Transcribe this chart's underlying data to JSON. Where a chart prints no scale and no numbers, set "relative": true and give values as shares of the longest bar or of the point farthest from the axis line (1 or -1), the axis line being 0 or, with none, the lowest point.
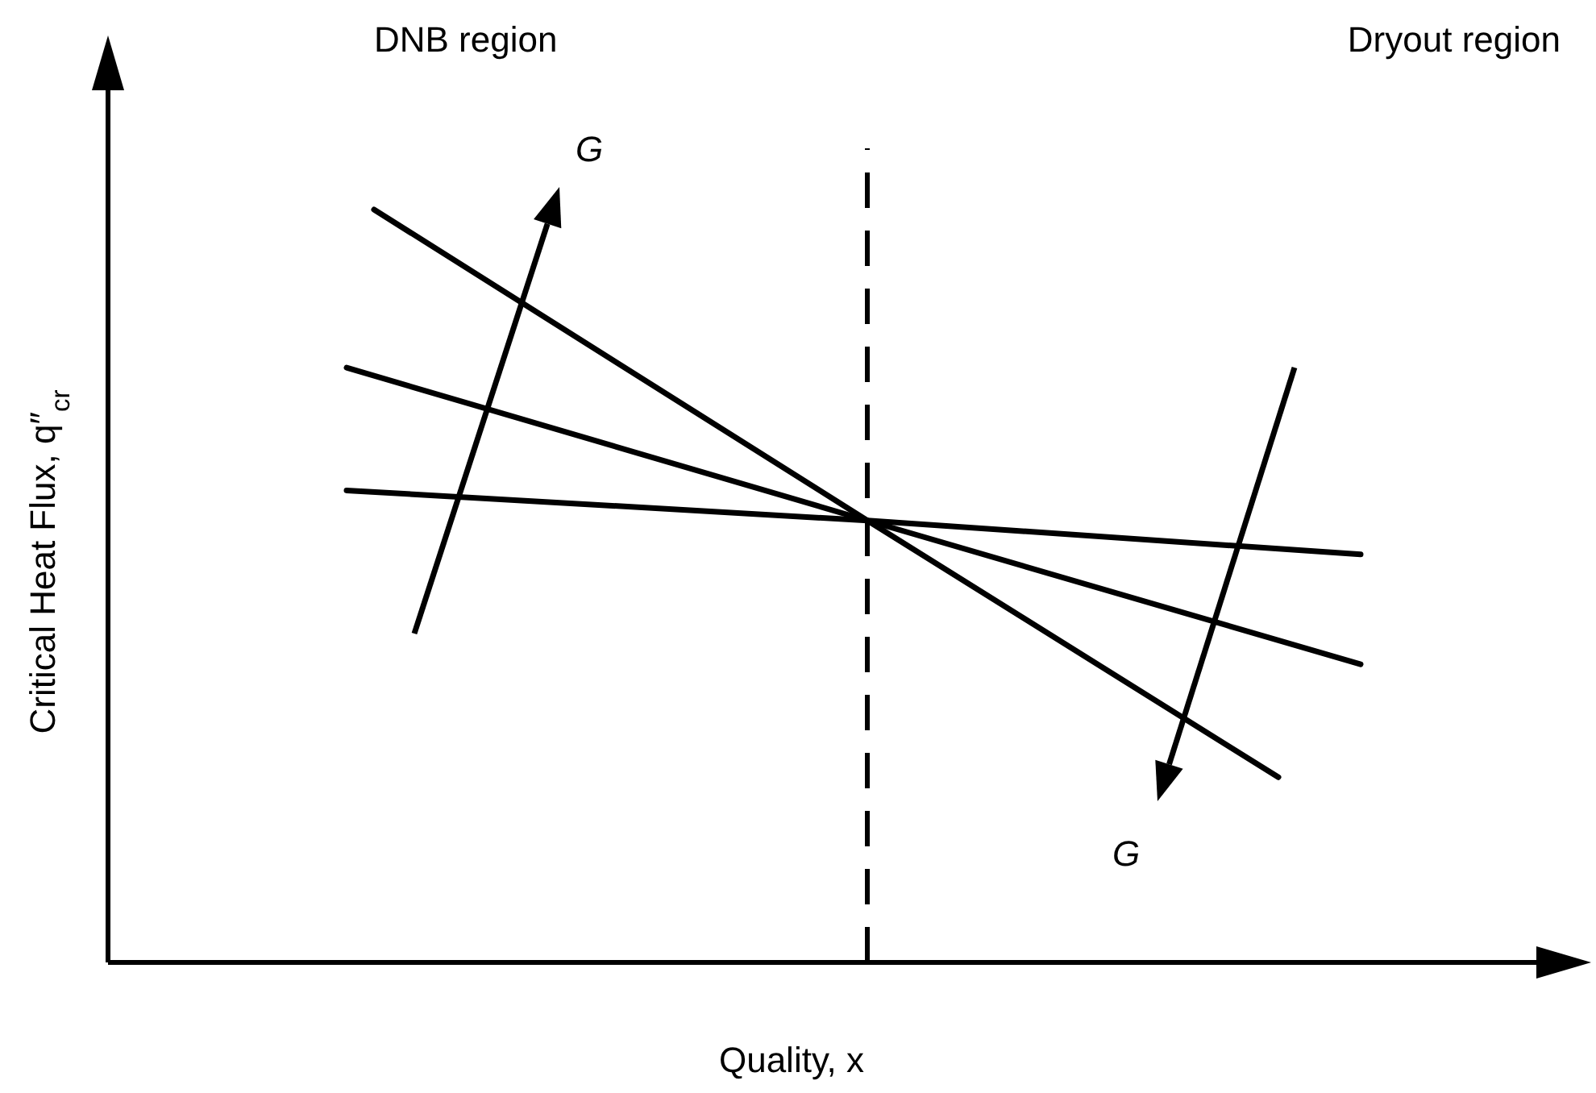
{
  "chart_data": {
    "type": "line",
    "relative": true,
    "xlabel": "Quality, x",
    "ylabel": "Critical Heat Flux, q″$_{cr}$",
    "categories": [
      null,
      null,
      null,
      null,
      null,
      null,
      null,
      null,
      null,
      null,
      null,
      null,
      null,
      null,
      null,
      null,
      null,
      null,
      null,
      null,
      null,
      null,
      null,
      null,
      null,
      null,
      null,
      null,
      null,
      null,
      null,
      null,
      null,
      null,
      null,
      null,
      null,
      null,
      null,
      null,
      null,
      null,
      null,
      null,
      null,
      null,
      null,
      null,
      null,
      null,
      null,
      null,
      null
    ],
    "series": [
      {
        "color": "#000000",
        "values": [
          null,
          null,
          null,
          null,
          null,
          null,
          null,
          null,
          null,
          1,
          null,
          null,
          null,
          null,
          null,
          null,
          null,
          null,
          null,
          null,
          null,
          null,
          null,
          null,
          null,
          null,
          null,
          0.587,
          null,
          null,
          null,
          null,
          null,
          null,
          null,
          null,
          null,
          null,
          null,
          null,
          null,
          null,
          0.246,
          null,
          null,
          null,
          null,
          null,
          null,
          null,
          null,
          null,
          null
        ]
      },
      {
        "color": "#000000",
        "values": [
          null,
          null,
          null,
          null,
          null,
          null,
          null,
          null,
          0.79,
          null,
          null,
          null,
          null,
          null,
          null,
          null,
          null,
          null,
          null,
          null,
          null,
          null,
          null,
          null,
          null,
          null,
          null,
          0.587,
          null,
          null,
          null,
          null,
          null,
          null,
          null,
          null,
          null,
          null,
          null,
          null,
          null,
          null,
          null,
          null,
          null,
          0.396,
          null,
          null,
          null,
          null,
          null,
          null,
          null
        ]
      },
      {
        "color": "#000000",
        "values": [
          null,
          null,
          null,
          null,
          null,
          null,
          null,
          null,
          0.627,
          null,
          null,
          null,
          null,
          null,
          null,
          null,
          null,
          null,
          null,
          null,
          null,
          null,
          null,
          null,
          null,
          null,
          null,
          0.587,
          null,
          null,
          null,
          null,
          null,
          null,
          null,
          null,
          null,
          null,
          null,
          null,
          null,
          null,
          null,
          null,
          null,
          0.542,
          null,
          null,
          null,
          null,
          null,
          null,
          null
        ]
      }
    ],
    "annotations": [
      "DNB region",
      "Dryout region",
      "G",
      "G"
    ],
    "line_style": "solid",
    "marker": "none"
  }
}
